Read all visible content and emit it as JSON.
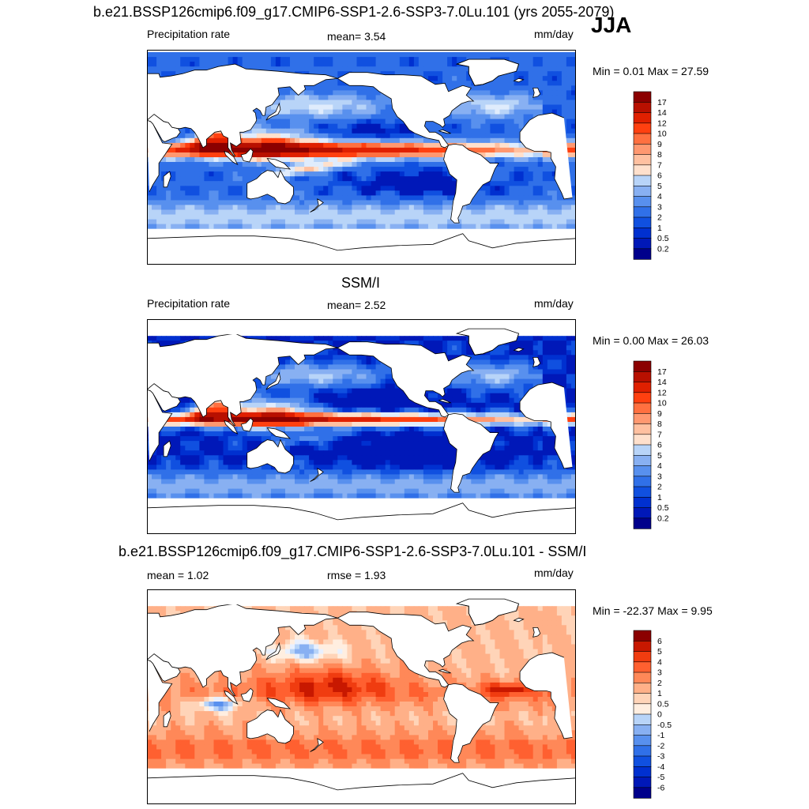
{
  "header": {
    "title": "b.e21.BSSP126cmip6.f09_g17.CMIP6-SSP1-2.6-SSP3-7.0Lu.101 (yrs 2055-2079)",
    "season": "JJA"
  },
  "colors": {
    "precip": [
      "#00008b",
      "#0018b8",
      "#0030d0",
      "#1050e0",
      "#3070e8",
      "#5890ee",
      "#88b0f2",
      "#b8d4f8",
      "#e0ecfc",
      "#ffe0cc",
      "#ffc0a0",
      "#ff9870",
      "#ff7040",
      "#ff4010",
      "#e02000",
      "#b81000",
      "#8b0000"
    ],
    "diff": [
      "#00008b",
      "#0018b8",
      "#0030d0",
      "#1050e0",
      "#3070e8",
      "#5890ee",
      "#88b0f2",
      "#b8d4f8",
      "#e8f0ff",
      "#ffeee0",
      "#ffd4b8",
      "#ffb088",
      "#ff8858",
      "#ff6030",
      "#f03c10",
      "#c81800",
      "#8b0000"
    ],
    "land": "#ffffff",
    "coast": "#000000"
  },
  "panels": [
    {
      "id": "model",
      "subtitle": "",
      "left_label": "Precipitation rate",
      "center_label": "mean=   3.54",
      "units": "mm/day",
      "minmax": "Min =   0.01 Max =  27.59",
      "colorbar_labels": [
        "17",
        "14",
        "12",
        "10",
        "9",
        "8",
        "7",
        "6",
        "5",
        "4",
        "3",
        "2",
        "1",
        "0.5",
        "0.2"
      ],
      "scale": "precip",
      "field": "model"
    },
    {
      "id": "obs",
      "subtitle": "SSM/I",
      "left_label": "Precipitation rate",
      "center_label": "mean=   2.52",
      "units": "mm/day",
      "minmax": "Min =   0.00 Max =  26.03",
      "colorbar_labels": [
        "17",
        "14",
        "12",
        "10",
        "9",
        "8",
        "7",
        "6",
        "5",
        "4",
        "3",
        "2",
        "1",
        "0.5",
        "0.2"
      ],
      "scale": "precip",
      "field": "obs"
    },
    {
      "id": "diff",
      "subtitle": "b.e21.BSSP126cmip6.f09_g17.CMIP6-SSP1-2.6-SSP3-7.0Lu.101 - SSM/I",
      "left_label": "mean =   1.02",
      "center_label": "rmse =   1.93",
      "units": "mm/day",
      "minmax": "Min = -22.37 Max =   9.95",
      "colorbar_labels": [
        "6",
        "5",
        "4",
        "3",
        "2",
        "1",
        "0.5",
        "0",
        "-0.5",
        "-1",
        "-2",
        "-3",
        "-4",
        "-5",
        "-6"
      ],
      "scale": "diff",
      "field": "diff"
    }
  ]
}
